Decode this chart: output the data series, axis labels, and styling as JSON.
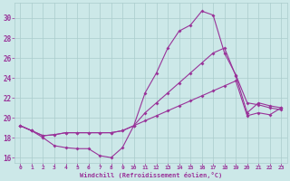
{
  "xlabel": "Windchill (Refroidissement éolien,°C)",
  "background_color": "#cce8e8",
  "line_color": "#993399",
  "grid_color": "#aacccc",
  "xlim": [
    -0.5,
    23.5
  ],
  "ylim": [
    15.5,
    31.5
  ],
  "xticks": [
    0,
    1,
    2,
    3,
    4,
    5,
    6,
    7,
    8,
    9,
    10,
    11,
    12,
    13,
    14,
    15,
    16,
    17,
    18,
    19,
    20,
    21,
    22,
    23
  ],
  "yticks": [
    16,
    18,
    20,
    22,
    24,
    26,
    28,
    30
  ],
  "line1_x": [
    0,
    1,
    2,
    3,
    4,
    5,
    6,
    7,
    8,
    9,
    10,
    11,
    12,
    13,
    14,
    15,
    16,
    17,
    18,
    19,
    20,
    21,
    22,
    23
  ],
  "line1_y": [
    19.2,
    18.7,
    18.0,
    17.2,
    17.0,
    16.9,
    16.9,
    16.2,
    16.0,
    17.0,
    19.2,
    22.5,
    24.5,
    27.0,
    28.7,
    29.3,
    30.7,
    30.3,
    26.5,
    24.3,
    21.5,
    21.3,
    21.0,
    20.8
  ],
  "line2_x": [
    0,
    1,
    2,
    3,
    4,
    5,
    6,
    7,
    8,
    9,
    10,
    11,
    12,
    13,
    14,
    15,
    16,
    17,
    18,
    19,
    20,
    21,
    22,
    23
  ],
  "line2_y": [
    19.2,
    18.7,
    18.2,
    18.3,
    18.5,
    18.5,
    18.5,
    18.5,
    18.5,
    18.7,
    19.2,
    20.5,
    21.5,
    22.5,
    23.5,
    24.5,
    25.5,
    26.5,
    27.0,
    24.2,
    20.5,
    21.5,
    21.2,
    21.0
  ],
  "line3_x": [
    0,
    1,
    2,
    3,
    4,
    5,
    6,
    7,
    8,
    9,
    10,
    11,
    12,
    13,
    14,
    15,
    16,
    17,
    18,
    19,
    20,
    21,
    22,
    23
  ],
  "line3_y": [
    19.2,
    18.7,
    18.2,
    18.3,
    18.5,
    18.5,
    18.5,
    18.5,
    18.5,
    18.7,
    19.2,
    19.7,
    20.2,
    20.7,
    21.2,
    21.7,
    22.2,
    22.7,
    23.2,
    23.7,
    20.2,
    20.5,
    20.3,
    21.0
  ]
}
